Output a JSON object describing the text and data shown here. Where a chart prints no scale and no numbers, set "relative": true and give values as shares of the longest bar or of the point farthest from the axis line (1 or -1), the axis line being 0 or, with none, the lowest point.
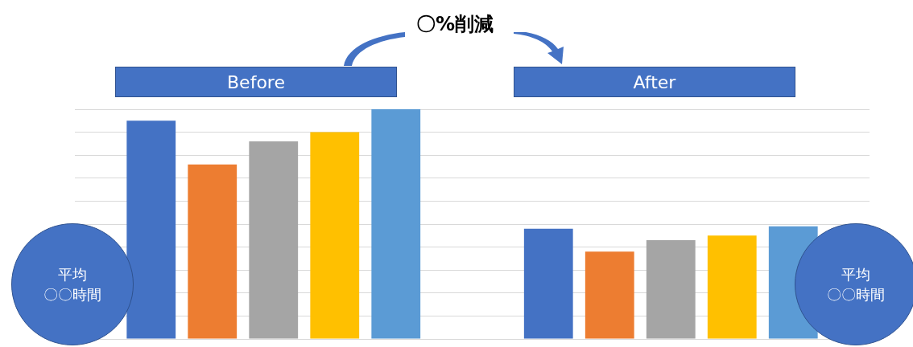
{
  "chart_data": {
    "type": "bar",
    "title": "〇%削減",
    "relative": true,
    "grid": "y",
    "categories": [
      null,
      null
    ],
    "series": [
      {
        "color": "#4472c4",
        "values": [
          0.95,
          0.48
        ]
      },
      {
        "color": "#ed7d31",
        "values": [
          0.76,
          0.38
        ]
      },
      {
        "color": "#a5a5a5",
        "values": [
          0.86,
          0.43
        ]
      },
      {
        "color": "#ffc000",
        "values": [
          0.9,
          0.45
        ]
      },
      {
        "color": "#5b9bd5",
        "values": [
          1.0,
          0.49
        ]
      }
    ],
    "annotations": [
      "Before",
      "After",
      "平均",
      "〇〇時間",
      "平均",
      "〇〇時間"
    ]
  }
}
